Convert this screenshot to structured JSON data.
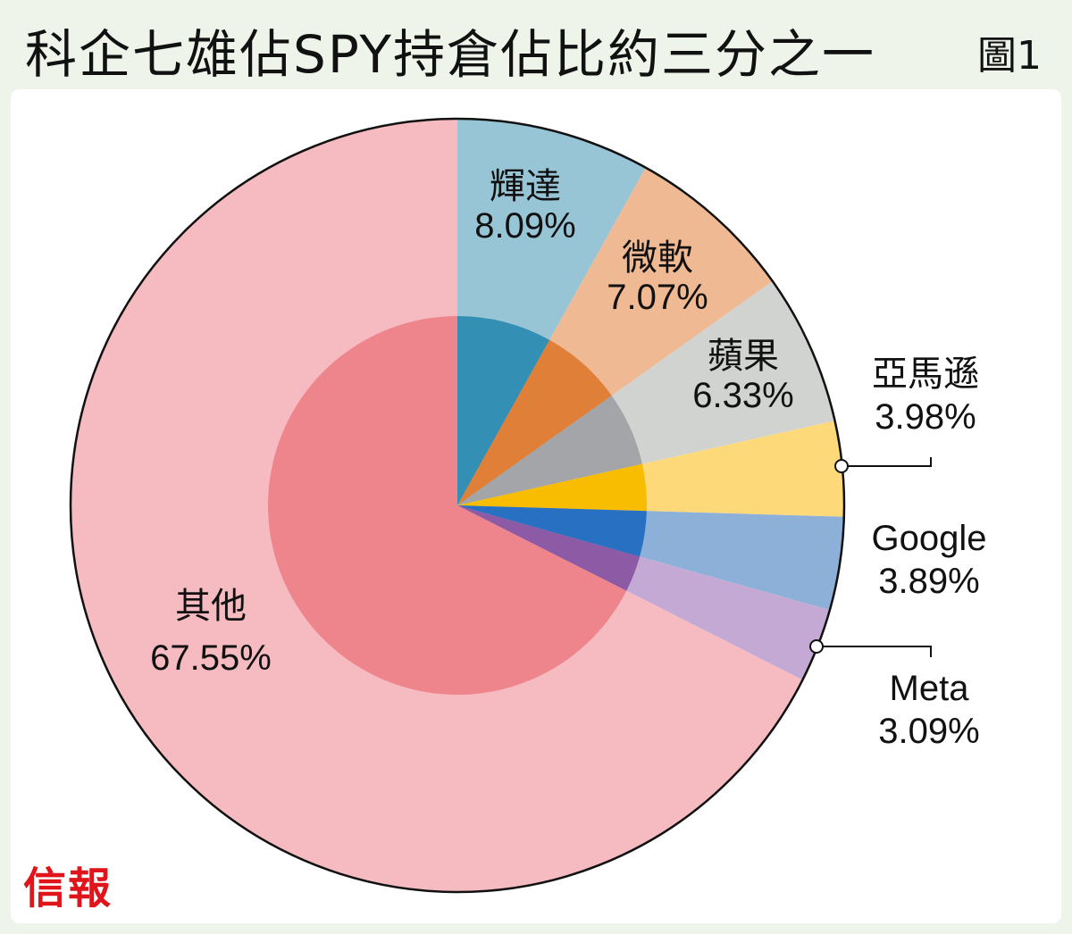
{
  "header": {
    "title": "科企七雄佔SPY持倉佔比約三分之一",
    "figure_label": "圖1"
  },
  "brand": {
    "logo_text": "信報"
  },
  "colors": {
    "background": "#eef4ea",
    "panel": "#ffffff",
    "brand": "#e0141b"
  },
  "chart_data": {
    "type": "pie",
    "title": "科企七雄佔SPY持倉佔比約三分之一",
    "unit": "%",
    "slices": [
      {
        "name": "輝達",
        "value": 8.09,
        "label": "8.09%",
        "outer_color": "#98c5d6",
        "inner_color": "#338fb3"
      },
      {
        "name": "微軟",
        "value": 7.07,
        "label": "7.07%",
        "outer_color": "#efb994",
        "inner_color": "#e07f38"
      },
      {
        "name": "蘋果",
        "value": 6.33,
        "label": "6.33%",
        "outer_color": "#d1d3d0",
        "inner_color": "#a3a5a8"
      },
      {
        "name": "亞馬遜",
        "value": 3.98,
        "label": "3.98%",
        "outer_color": "#fdd97a",
        "inner_color": "#f8bd00"
      },
      {
        "name": "Google",
        "value": 3.89,
        "label": "3.89%",
        "outer_color": "#8db0d9",
        "inner_color": "#2870c1"
      },
      {
        "name": "Meta",
        "value": 3.09,
        "label": "3.09%",
        "outer_color": "#c3a9d3",
        "inner_color": "#8d5aa5"
      },
      {
        "name": "其他",
        "value": 67.55,
        "label": "67.55%",
        "outer_color": "#f6bbc0",
        "inner_color": "#ee848c"
      }
    ],
    "start": "12 o'clock",
    "direction": "clockwise"
  }
}
